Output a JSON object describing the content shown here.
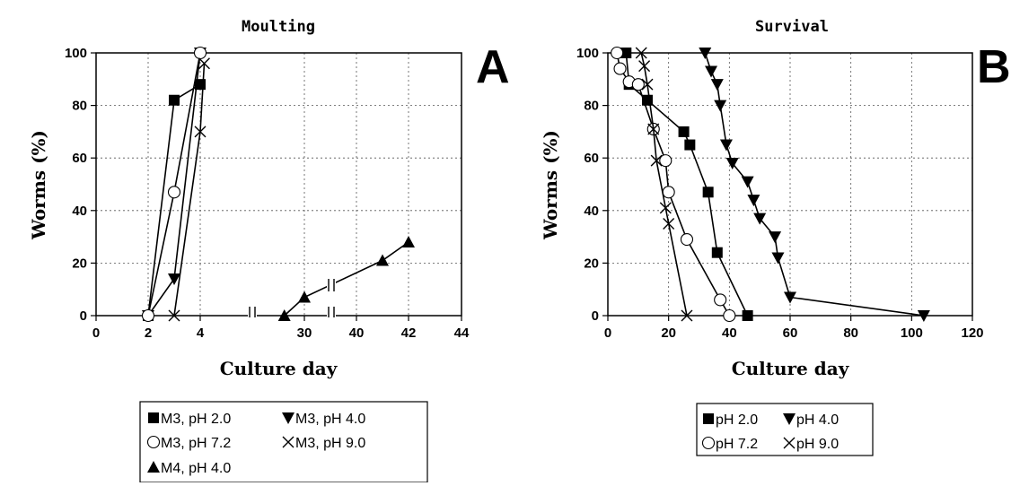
{
  "panel_a_letter": "A",
  "panel_b_letter": "B",
  "chart_data": [
    {
      "type": "line",
      "title": "Moulting",
      "xlabel": "Culture day",
      "ylabel": "Worms (%)",
      "xlim": [
        0,
        44
      ],
      "ylim": [
        0,
        100
      ],
      "x_ticks": [
        "0",
        "2",
        "4",
        "30",
        "40",
        "42",
        "44"
      ],
      "y_ticks": [
        "0",
        "20",
        "40",
        "60",
        "80",
        "100"
      ],
      "x_axis_break": true,
      "grid": true,
      "legend_position": "bottom",
      "series": [
        {
          "name": "M3, pH 2.0",
          "marker": "square",
          "points": [
            [
              2,
              0
            ],
            [
              3,
              82
            ],
            [
              4,
              88
            ]
          ]
        },
        {
          "name": "M3, pH 4.0",
          "marker": "triangle-down",
          "points": [
            [
              2,
              0
            ],
            [
              3,
              14
            ],
            [
              4,
              100
            ]
          ]
        },
        {
          "name": "M3, pH 7.2",
          "marker": "circle-open",
          "points": [
            [
              2,
              0
            ],
            [
              3,
              47
            ],
            [
              4,
              100
            ]
          ]
        },
        {
          "name": "M3, pH 9.0",
          "marker": "x",
          "points": [
            [
              3,
              0
            ],
            [
              4,
              70
            ],
            [
              5,
              96
            ]
          ]
        },
        {
          "name": "M4, pH 4.0",
          "marker": "triangle-up",
          "points": [
            [
              25,
              0
            ],
            [
              30,
              7
            ],
            [
              41,
              21
            ],
            [
              42,
              28
            ]
          ]
        }
      ]
    },
    {
      "type": "line",
      "title": "Survival",
      "xlabel": "Culture day",
      "ylabel": "Worms (%)",
      "xlim": [
        0,
        120
      ],
      "ylim": [
        0,
        100
      ],
      "x_ticks": [
        "0",
        "20",
        "40",
        "60",
        "80",
        "100",
        "120"
      ],
      "y_ticks": [
        "0",
        "20",
        "40",
        "60",
        "80",
        "100"
      ],
      "grid": true,
      "legend_position": "bottom",
      "series": [
        {
          "name": "pH 2.0",
          "marker": "square",
          "points": [
            [
              6,
              100
            ],
            [
              7,
              88
            ],
            [
              13,
              82
            ],
            [
              25,
              70
            ],
            [
              27,
              65
            ],
            [
              33,
              47
            ],
            [
              36,
              24
            ],
            [
              46,
              0
            ]
          ]
        },
        {
          "name": "pH 4.0",
          "marker": "triangle-down",
          "points": [
            [
              32,
              100
            ],
            [
              34,
              93
            ],
            [
              36,
              88
            ],
            [
              37,
              80
            ],
            [
              39,
              65
            ],
            [
              41,
              58
            ],
            [
              46,
              51
            ],
            [
              48,
              44
            ],
            [
              50,
              37
            ],
            [
              55,
              30
            ],
            [
              56,
              22
            ],
            [
              60,
              7
            ],
            [
              104,
              0
            ]
          ]
        },
        {
          "name": "pH 7.2",
          "marker": "circle-open",
          "points": [
            [
              3,
              100
            ],
            [
              4,
              94
            ],
            [
              7,
              89
            ],
            [
              10,
              88
            ],
            [
              15,
              71
            ],
            [
              19,
              59
            ],
            [
              20,
              47
            ],
            [
              26,
              29
            ],
            [
              37,
              6
            ],
            [
              40,
              0
            ]
          ]
        },
        {
          "name": "pH 9.0",
          "marker": "x",
          "points": [
            [
              11,
              100
            ],
            [
              12,
              95
            ],
            [
              13,
              88
            ],
            [
              15,
              71
            ],
            [
              16,
              59
            ],
            [
              19,
              41
            ],
            [
              20,
              35
            ],
            [
              26,
              0
            ]
          ]
        }
      ]
    }
  ]
}
